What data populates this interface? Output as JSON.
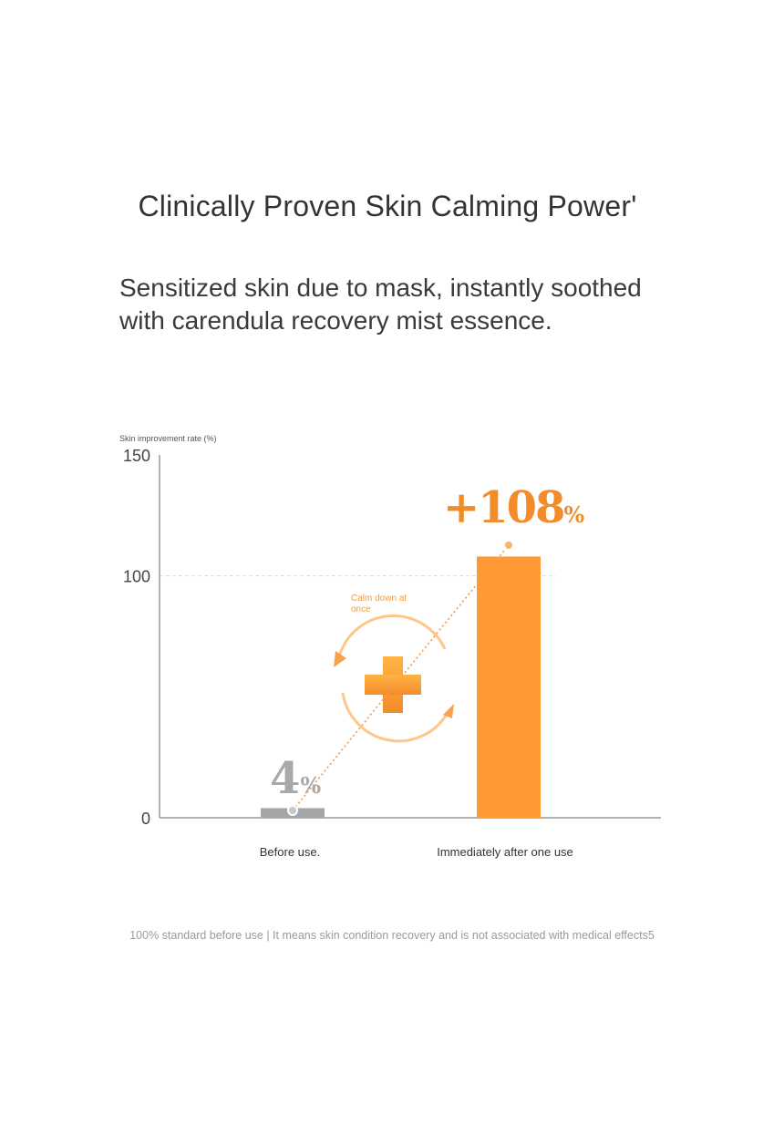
{
  "title": "Clinically Proven Skin Calming Power'",
  "subtitle": {
    "line1": "Sensitized skin due to mask, instantly soothed",
    "line2": "with carendula recovery mist essence."
  },
  "footnote": "100% standard before use | It means skin condition recovery and is not associated with medical effects5",
  "chart_data": {
    "type": "bar",
    "ylabel": "Skin improvement rate (%)",
    "ylim": [
      0,
      150
    ],
    "yticks": [
      "0",
      "100",
      "150"
    ],
    "reference_line": 100,
    "categories": [
      "Before use.",
      "Immediately after one use"
    ],
    "values": [
      4,
      108
    ],
    "value_labels": [
      {
        "number": "4",
        "unit": "%"
      },
      {
        "number": "+108",
        "unit": "%"
      }
    ],
    "annotation": "Calm down at once",
    "colors": {
      "before": "#a6a6a6",
      "after": "#ff9933",
      "accent": "#f28c28",
      "axis": "#999999",
      "grid": "#dddddd"
    },
    "icons": [
      "plus-cross-icon",
      "circular-arrows-icon"
    ]
  }
}
